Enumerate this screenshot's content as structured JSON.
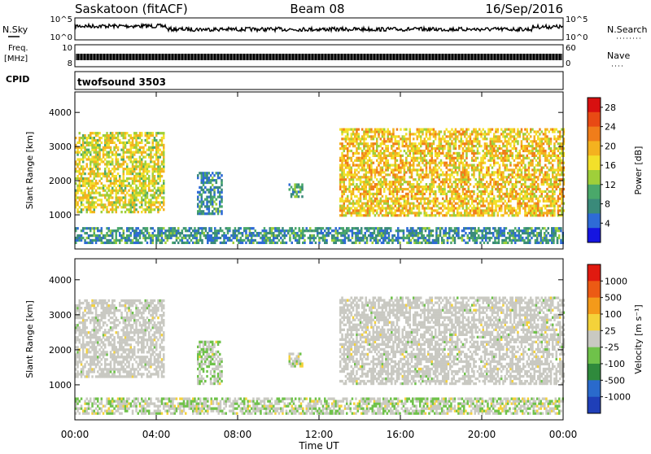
{
  "header": {
    "station": "Saskatoon (fitACF)",
    "beam": "Beam 08",
    "date": "16/Sep/2016"
  },
  "strip_labels": {
    "nsky": "N.Sky",
    "nsearch": "N.Search",
    "freq_line1": "Freq.",
    "freq_line2": "[MHz]",
    "nave": "Nave",
    "cpid": "CPID",
    "cpid_value": "twofsound 3503",
    "noise_ticks": [
      "10^5",
      "10^0"
    ],
    "freq_ticks": [
      "10",
      "8"
    ],
    "nave_ticks": [
      "60",
      "0"
    ]
  },
  "chart_data": [
    {
      "type": "heatmap",
      "panel": "power",
      "ylabel": "Slant Range [km]",
      "xlabel": "Time UT",
      "x_ticks": [
        "00:00",
        "04:00",
        "08:00",
        "12:00",
        "16:00",
        "20:00",
        "00:00"
      ],
      "xlim_hours": [
        0,
        24
      ],
      "ylim": [
        0,
        4600
      ],
      "y_ticks": [
        1000,
        2000,
        3000,
        4000
      ],
      "colorbar": {
        "label": "Power [dB]",
        "ticks": [
          4,
          8,
          12,
          16,
          20,
          24,
          28
        ],
        "range": [
          0,
          30
        ],
        "colors": [
          "#1515e0",
          "#2e6bd6",
          "#3a8a7a",
          "#4aa86a",
          "#9fcf3a",
          "#f3e02a",
          "#f4b21f",
          "#f07d1a",
          "#e84a14",
          "#d81010"
        ]
      },
      "regions": [
        {
          "t": [
            0.0,
            4.4
          ],
          "r": [
            1050,
            3400
          ],
          "level": 16
        },
        {
          "t": [
            13.0,
            24.0
          ],
          "r": [
            950,
            3500
          ],
          "level": 18
        },
        {
          "t": [
            6.0,
            7.2
          ],
          "r": [
            1000,
            2200
          ],
          "level": 8
        },
        {
          "t": [
            10.5,
            11.2
          ],
          "r": [
            1500,
            1900
          ],
          "level": 10
        },
        {
          "t": [
            0.0,
            24.0
          ],
          "r": [
            150,
            600
          ],
          "level": 8
        }
      ]
    },
    {
      "type": "heatmap",
      "panel": "velocity",
      "ylabel": "Slant Range [km]",
      "xlabel": "Time UT",
      "x_ticks": [
        "00:00",
        "04:00",
        "08:00",
        "12:00",
        "16:00",
        "20:00",
        "00:00"
      ],
      "xlim_hours": [
        0,
        24
      ],
      "ylim": [
        0,
        4600
      ],
      "y_ticks": [
        1000,
        2000,
        3000,
        4000
      ],
      "colorbar": {
        "label": "Velocity [m s⁻¹]",
        "ticks": [
          "1000",
          "500",
          "100",
          "25",
          "-25",
          "-100",
          "-500",
          "-1000"
        ],
        "range": [
          -1250,
          1250
        ],
        "colors": [
          "#1f3fb8",
          "#2a6acc",
          "#2f8a3c",
          "#6fc24a",
          "#c9c9c2",
          "#f4d23a",
          "#f49a1a",
          "#ec5a14",
          "#e01a10"
        ]
      },
      "regions": [
        {
          "t": [
            0.0,
            4.4
          ],
          "r": [
            1200,
            3400
          ],
          "level": 0
        },
        {
          "t": [
            13.0,
            24.0
          ],
          "r": [
            1000,
            3500
          ],
          "level": 0
        },
        {
          "t": [
            6.0,
            7.2
          ],
          "r": [
            1000,
            2200
          ],
          "level": -100
        },
        {
          "t": [
            10.5,
            11.2
          ],
          "r": [
            1500,
            1900
          ],
          "level": 50
        },
        {
          "t": [
            0.0,
            24.0
          ],
          "r": [
            150,
            600
          ],
          "level": -50
        }
      ]
    }
  ]
}
